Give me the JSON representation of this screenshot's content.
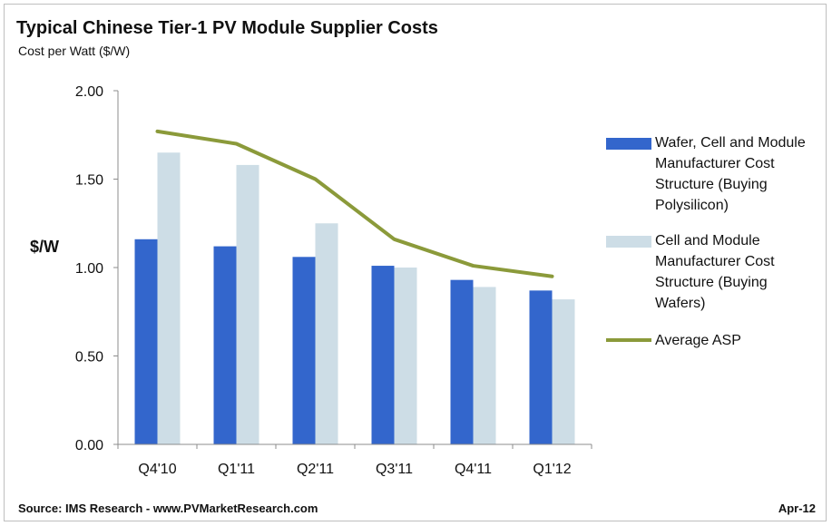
{
  "header": {
    "title": "Typical Chinese Tier-1 PV Module Supplier Costs",
    "subtitle": "Cost per Watt ($/W)"
  },
  "footer": {
    "source": "Source: IMS Research - www.PVMarketResearch.com",
    "date": "Apr-12"
  },
  "colors": {
    "series1": "#3366cc",
    "series2": "#cddde6",
    "line": "#8b9a3a",
    "axis": "#8c8c8c"
  },
  "chart_data": {
    "type": "bar",
    "title": "Typical Chinese Tier-1 PV Module Supplier Costs",
    "subtitle": "Cost per Watt ($/W)",
    "ylabel": "$/W",
    "xlabel": "",
    "ylim": [
      0,
      2
    ],
    "yticks": [
      "0.00",
      "0.50",
      "1.00",
      "1.50",
      "2.00"
    ],
    "categories": [
      "Q4'10",
      "Q1'11",
      "Q2'11",
      "Q3'11",
      "Q4'11",
      "Q1'12"
    ],
    "series": [
      {
        "name": "Wafer, Cell and Module Manufacturer Cost Structure (Buying Polysilicon)",
        "kind": "bar",
        "values": [
          1.16,
          1.12,
          1.06,
          1.01,
          0.93,
          0.87
        ]
      },
      {
        "name": "Cell and Module Manufacturer Cost Structure (Buying Wafers)",
        "kind": "bar",
        "values": [
          1.65,
          1.58,
          1.25,
          1.0,
          0.89,
          0.82
        ]
      },
      {
        "name": "Average ASP",
        "kind": "line",
        "values": [
          1.77,
          1.7,
          1.5,
          1.16,
          1.01,
          0.95
        ]
      }
    ],
    "grid": false,
    "legend": "right"
  }
}
